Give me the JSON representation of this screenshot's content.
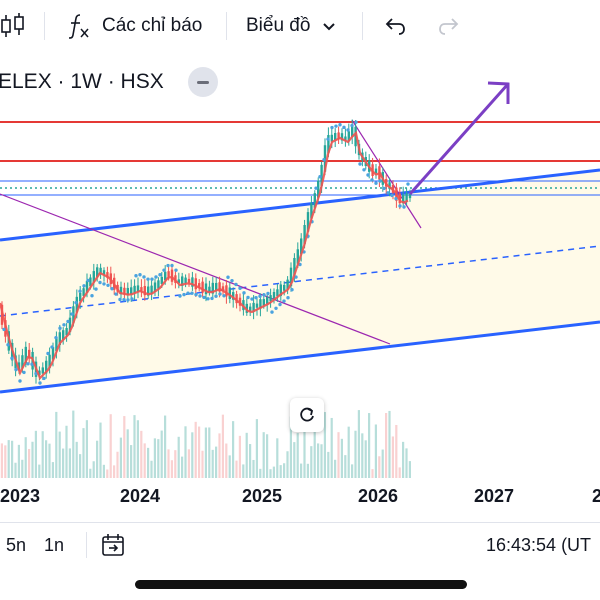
{
  "toolbar": {
    "indicators_label": "Các chỉ báo",
    "chart_type_label": "Biểu đồ"
  },
  "legend": {
    "title": "ELEX · 1W · HSX"
  },
  "x_axis": {
    "ticks": [
      "2023",
      "2024",
      "2025",
      "2026",
      "2027",
      "2"
    ]
  },
  "bottom_bar": {
    "range_5y": "5n",
    "range_1y": "1n",
    "clock": "16:43:54 (UT"
  },
  "colors": {
    "bull": "#26a69a",
    "bear": "#ef5350",
    "resistance": "#e53935",
    "channel": "#2962ff",
    "trend": "#9c27b0",
    "arrow": "#7b3fc4",
    "sar": "#4aa3df"
  },
  "icons": {
    "candles": "candlestick-icon",
    "indicators": "fx-icon",
    "chart_type": "chevron-down-icon",
    "undo": "undo-icon",
    "redo": "redo-icon",
    "collapse": "minus-icon",
    "reset": "reset-icon",
    "goto_date": "goto-date-icon"
  }
}
